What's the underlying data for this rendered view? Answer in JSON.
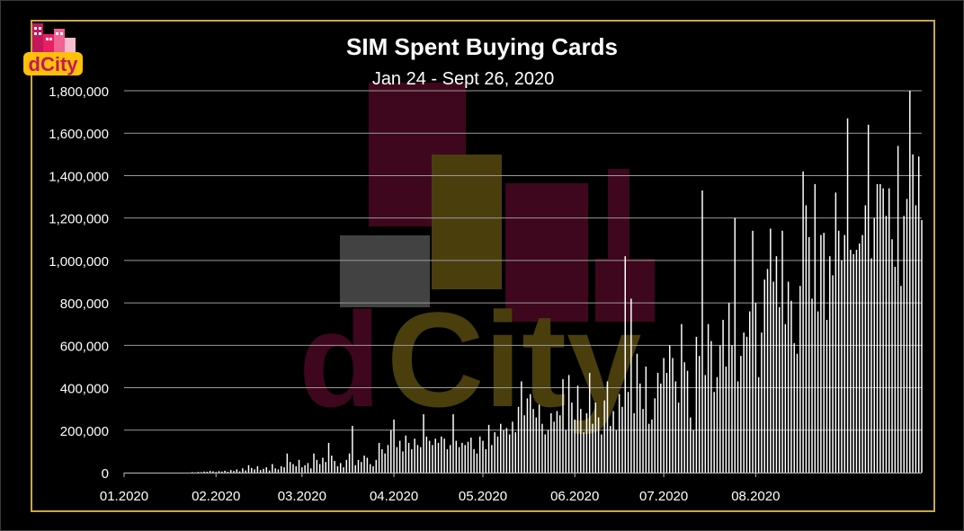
{
  "logo_text": "dCity",
  "chart_data": {
    "type": "bar",
    "title": "SIM Spent Buying Cards",
    "subtitle": "Jan 24 - Sept 26, 2020",
    "xlabel": "",
    "ylabel": "",
    "ylim": [
      0,
      1800000
    ],
    "y_ticks": [
      "0",
      "200,000",
      "400,000",
      "600,000",
      "800,000",
      "1,000,000",
      "1,200,000",
      "1,400,000",
      "1,600,000",
      "1,800,000"
    ],
    "x_ticks": [
      "01.2020",
      "02.2020",
      "03.2020",
      "04.2020",
      "05.2020",
      "06.2020",
      "07.2020",
      "08.2020"
    ],
    "grid": true,
    "legend": "none",
    "bar_color": "#ffffff",
    "gridline_color": "#9a9a9a",
    "points": [
      [
        "2020-01-24",
        2000
      ],
      [
        "2020-01-25",
        1000
      ],
      [
        "2020-01-26",
        3000
      ],
      [
        "2020-01-27",
        2000
      ],
      [
        "2020-01-28",
        5000
      ],
      [
        "2020-01-29",
        4000
      ],
      [
        "2020-01-30",
        8000
      ],
      [
        "2020-01-31",
        6000
      ],
      [
        "2020-02-01",
        3000
      ],
      [
        "2020-02-02",
        7000
      ],
      [
        "2020-02-03",
        5000
      ],
      [
        "2020-02-04",
        9000
      ],
      [
        "2020-02-05",
        4000
      ],
      [
        "2020-02-06",
        12000
      ],
      [
        "2020-02-07",
        8000
      ],
      [
        "2020-02-08",
        15000
      ],
      [
        "2020-02-09",
        6000
      ],
      [
        "2020-02-10",
        20000
      ],
      [
        "2020-02-11",
        10000
      ],
      [
        "2020-02-12",
        35000
      ],
      [
        "2020-02-13",
        22000
      ],
      [
        "2020-02-14",
        15000
      ],
      [
        "2020-02-15",
        30000
      ],
      [
        "2020-02-16",
        12000
      ],
      [
        "2020-02-17",
        18000
      ],
      [
        "2020-02-18",
        25000
      ],
      [
        "2020-02-19",
        10000
      ],
      [
        "2020-02-20",
        40000
      ],
      [
        "2020-02-21",
        20000
      ],
      [
        "2020-02-22",
        15000
      ],
      [
        "2020-02-23",
        30000
      ],
      [
        "2020-02-24",
        25000
      ],
      [
        "2020-02-25",
        90000
      ],
      [
        "2020-02-26",
        50000
      ],
      [
        "2020-02-27",
        40000
      ],
      [
        "2020-02-28",
        30000
      ],
      [
        "2020-02-29",
        60000
      ],
      [
        "2020-03-01",
        25000
      ],
      [
        "2020-03-02",
        35000
      ],
      [
        "2020-03-03",
        45000
      ],
      [
        "2020-03-04",
        20000
      ],
      [
        "2020-03-05",
        90000
      ],
      [
        "2020-03-06",
        60000
      ],
      [
        "2020-03-07",
        40000
      ],
      [
        "2020-03-08",
        70000
      ],
      [
        "2020-03-09",
        50000
      ],
      [
        "2020-03-10",
        140000
      ],
      [
        "2020-03-11",
        80000
      ],
      [
        "2020-03-12",
        55000
      ],
      [
        "2020-03-13",
        30000
      ],
      [
        "2020-03-14",
        45000
      ],
      [
        "2020-03-15",
        25000
      ],
      [
        "2020-03-16",
        60000
      ],
      [
        "2020-03-17",
        90000
      ],
      [
        "2020-03-18",
        220000
      ],
      [
        "2020-03-19",
        35000
      ],
      [
        "2020-03-20",
        60000
      ],
      [
        "2020-03-21",
        50000
      ],
      [
        "2020-03-22",
        80000
      ],
      [
        "2020-03-23",
        70000
      ],
      [
        "2020-03-24",
        40000
      ],
      [
        "2020-03-25",
        30000
      ],
      [
        "2020-03-26",
        60000
      ],
      [
        "2020-03-27",
        140000
      ],
      [
        "2020-03-28",
        110000
      ],
      [
        "2020-03-29",
        90000
      ],
      [
        "2020-03-30",
        130000
      ],
      [
        "2020-03-31",
        200000
      ],
      [
        "2020-04-01",
        250000
      ],
      [
        "2020-04-02",
        120000
      ],
      [
        "2020-04-03",
        150000
      ],
      [
        "2020-04-04",
        100000
      ],
      [
        "2020-04-05",
        175000
      ],
      [
        "2020-04-06",
        140000
      ],
      [
        "2020-04-07",
        110000
      ],
      [
        "2020-04-08",
        160000
      ],
      [
        "2020-04-09",
        130000
      ],
      [
        "2020-04-10",
        120000
      ],
      [
        "2020-04-11",
        275000
      ],
      [
        "2020-04-12",
        170000
      ],
      [
        "2020-04-13",
        150000
      ],
      [
        "2020-04-14",
        130000
      ],
      [
        "2020-04-15",
        160000
      ],
      [
        "2020-04-16",
        140000
      ],
      [
        "2020-04-17",
        170000
      ],
      [
        "2020-04-18",
        160000
      ],
      [
        "2020-04-19",
        110000
      ],
      [
        "2020-04-20",
        130000
      ],
      [
        "2020-04-21",
        275000
      ],
      [
        "2020-04-22",
        150000
      ],
      [
        "2020-04-23",
        120000
      ],
      [
        "2020-04-24",
        140000
      ],
      [
        "2020-04-25",
        130000
      ],
      [
        "2020-04-26",
        145000
      ],
      [
        "2020-04-27",
        165000
      ],
      [
        "2020-04-28",
        110000
      ],
      [
        "2020-04-29",
        90000
      ],
      [
        "2020-04-30",
        170000
      ],
      [
        "2020-05-01",
        150000
      ],
      [
        "2020-05-02",
        110000
      ],
      [
        "2020-05-03",
        225000
      ],
      [
        "2020-05-04",
        130000
      ],
      [
        "2020-05-05",
        190000
      ],
      [
        "2020-05-06",
        170000
      ],
      [
        "2020-05-07",
        230000
      ],
      [
        "2020-05-08",
        200000
      ],
      [
        "2020-05-09",
        210000
      ],
      [
        "2020-05-10",
        180000
      ],
      [
        "2020-05-11",
        240000
      ],
      [
        "2020-05-12",
        190000
      ],
      [
        "2020-05-13",
        310000
      ],
      [
        "2020-05-14",
        430000
      ],
      [
        "2020-05-15",
        270000
      ],
      [
        "2020-05-16",
        350000
      ],
      [
        "2020-05-17",
        370000
      ],
      [
        "2020-05-18",
        300000
      ],
      [
        "2020-05-19",
        260000
      ],
      [
        "2020-05-20",
        320000
      ],
      [
        "2020-05-21",
        230000
      ],
      [
        "2020-05-22",
        180000
      ],
      [
        "2020-05-23",
        200000
      ],
      [
        "2020-05-24",
        280000
      ],
      [
        "2020-05-25",
        240000
      ],
      [
        "2020-05-26",
        290000
      ],
      [
        "2020-05-27",
        270000
      ],
      [
        "2020-05-28",
        440000
      ],
      [
        "2020-05-29",
        200000
      ],
      [
        "2020-05-30",
        460000
      ],
      [
        "2020-05-31",
        330000
      ],
      [
        "2020-06-01",
        250000
      ],
      [
        "2020-06-02",
        410000
      ],
      [
        "2020-06-03",
        300000
      ],
      [
        "2020-06-04",
        190000
      ],
      [
        "2020-06-05",
        280000
      ],
      [
        "2020-06-06",
        470000
      ],
      [
        "2020-06-07",
        230000
      ],
      [
        "2020-06-08",
        330000
      ],
      [
        "2020-06-09",
        260000
      ],
      [
        "2020-06-10",
        180000
      ],
      [
        "2020-06-11",
        340000
      ],
      [
        "2020-06-12",
        430000
      ],
      [
        "2020-06-13",
        220000
      ],
      [
        "2020-06-14",
        290000
      ],
      [
        "2020-06-15",
        200000
      ],
      [
        "2020-06-16",
        370000
      ],
      [
        "2020-06-17",
        310000
      ],
      [
        "2020-06-18",
        1020000
      ],
      [
        "2020-06-19",
        380000
      ],
      [
        "2020-06-20",
        820000
      ],
      [
        "2020-06-21",
        280000
      ],
      [
        "2020-06-22",
        560000
      ],
      [
        "2020-06-23",
        420000
      ],
      [
        "2020-06-24",
        300000
      ],
      [
        "2020-06-25",
        500000
      ],
      [
        "2020-06-26",
        230000
      ],
      [
        "2020-06-27",
        250000
      ],
      [
        "2020-06-28",
        350000
      ],
      [
        "2020-06-29",
        470000
      ],
      [
        "2020-06-30",
        420000
      ],
      [
        "2020-07-01",
        540000
      ],
      [
        "2020-07-02",
        470000
      ],
      [
        "2020-07-03",
        600000
      ],
      [
        "2020-07-04",
        540000
      ],
      [
        "2020-07-05",
        430000
      ],
      [
        "2020-07-06",
        330000
      ],
      [
        "2020-07-07",
        700000
      ],
      [
        "2020-07-08",
        520000
      ],
      [
        "2020-07-09",
        480000
      ],
      [
        "2020-07-10",
        260000
      ],
      [
        "2020-07-11",
        200000
      ],
      [
        "2020-07-12",
        640000
      ],
      [
        "2020-07-13",
        550000
      ],
      [
        "2020-07-14",
        1330000
      ],
      [
        "2020-07-15",
        460000
      ],
      [
        "2020-07-16",
        700000
      ],
      [
        "2020-07-17",
        620000
      ],
      [
        "2020-07-18",
        380000
      ],
      [
        "2020-07-19",
        450000
      ],
      [
        "2020-07-20",
        600000
      ],
      [
        "2020-07-21",
        720000
      ],
      [
        "2020-07-22",
        500000
      ],
      [
        "2020-07-23",
        800000
      ],
      [
        "2020-07-24",
        600000
      ],
      [
        "2020-07-25",
        1200000
      ],
      [
        "2020-07-26",
        430000
      ],
      [
        "2020-07-27",
        550000
      ],
      [
        "2020-07-28",
        660000
      ],
      [
        "2020-07-29",
        640000
      ],
      [
        "2020-07-30",
        760000
      ],
      [
        "2020-07-31",
        1140000
      ],
      [
        "2020-08-01",
        800000
      ],
      [
        "2020-08-02",
        450000
      ],
      [
        "2020-08-03",
        660000
      ],
      [
        "2020-08-04",
        910000
      ],
      [
        "2020-08-05",
        960000
      ],
      [
        "2020-08-06",
        1150000
      ],
      [
        "2020-08-07",
        900000
      ],
      [
        "2020-08-08",
        1020000
      ],
      [
        "2020-08-09",
        780000
      ],
      [
        "2020-08-10",
        1140000
      ],
      [
        "2020-08-11",
        700000
      ],
      [
        "2020-08-12",
        900000
      ],
      [
        "2020-08-13",
        810000
      ],
      [
        "2020-08-14",
        610000
      ],
      [
        "2020-08-15",
        560000
      ],
      [
        "2020-08-16",
        880000
      ],
      [
        "2020-08-17",
        1420000
      ],
      [
        "2020-08-18",
        1260000
      ],
      [
        "2020-08-19",
        1110000
      ],
      [
        "2020-08-20",
        820000
      ],
      [
        "2020-08-21",
        1360000
      ],
      [
        "2020-08-22",
        760000
      ],
      [
        "2020-08-23",
        1120000
      ],
      [
        "2020-08-24",
        1130000
      ],
      [
        "2020-08-25",
        720000
      ],
      [
        "2020-08-26",
        1020000
      ],
      [
        "2020-08-27",
        930000
      ],
      [
        "2020-08-28",
        1320000
      ],
      [
        "2020-08-29",
        1140000
      ],
      [
        "2020-08-30",
        1000000
      ],
      [
        "2020-08-31",
        1120000
      ],
      [
        "2020-09-01",
        1670000
      ],
      [
        "2020-09-02",
        1050000
      ],
      [
        "2020-09-03",
        1030000
      ],
      [
        "2020-09-04",
        1050000
      ],
      [
        "2020-09-05",
        1080000
      ],
      [
        "2020-09-06",
        1120000
      ],
      [
        "2020-09-07",
        1260000
      ],
      [
        "2020-09-08",
        1640000
      ],
      [
        "2020-09-09",
        1010000
      ],
      [
        "2020-09-10",
        1200000
      ],
      [
        "2020-09-11",
        1360000
      ],
      [
        "2020-09-12",
        1360000
      ],
      [
        "2020-09-13",
        1340000
      ],
      [
        "2020-09-14",
        1210000
      ],
      [
        "2020-09-15",
        1340000
      ],
      [
        "2020-09-16",
        1100000
      ],
      [
        "2020-09-17",
        970000
      ],
      [
        "2020-09-18",
        1540000
      ],
      [
        "2020-09-19",
        880000
      ],
      [
        "2020-09-20",
        1210000
      ],
      [
        "2020-09-21",
        1290000
      ],
      [
        "2020-09-22",
        1800000
      ],
      [
        "2020-09-23",
        1500000
      ],
      [
        "2020-09-24",
        1260000
      ],
      [
        "2020-09-25",
        1490000
      ],
      [
        "2020-09-26",
        1190000
      ]
    ]
  }
}
